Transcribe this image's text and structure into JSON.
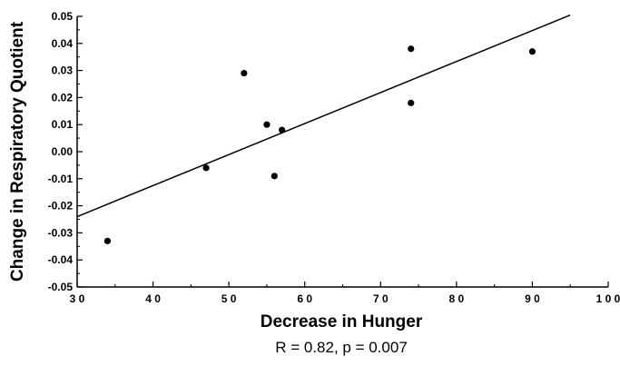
{
  "chart_data": {
    "type": "scatter",
    "title": "",
    "xlabel": "Decrease in Hunger",
    "ylabel": "Change in Respiratory Quotient",
    "xlim": [
      30,
      100
    ],
    "ylim": [
      -0.05,
      0.05
    ],
    "xticks": [
      30,
      40,
      50,
      60,
      70,
      80,
      90,
      100
    ],
    "xtick_labels": [
      "3 0",
      "4 0",
      "5 0",
      "6 0",
      "7 0",
      "8 0",
      "9 0",
      "1 0 0"
    ],
    "yticks": [
      -0.05,
      -0.04,
      -0.03,
      -0.02,
      -0.01,
      0.0,
      0.01,
      0.02,
      0.03,
      0.04,
      0.05
    ],
    "ytick_labels": [
      "-0.05",
      "-0.04",
      "-0.03",
      "-0.02",
      "-0.01",
      "0.00",
      "0.01",
      "0.02",
      "0.03",
      "0.04",
      "0.05"
    ],
    "grid": false,
    "points": [
      {
        "x": 34,
        "y": -0.033
      },
      {
        "x": 47,
        "y": -0.006
      },
      {
        "x": 52,
        "y": 0.029
      },
      {
        "x": 55,
        "y": 0.01
      },
      {
        "x": 56,
        "y": -0.009
      },
      {
        "x": 57,
        "y": 0.008
      },
      {
        "x": 74,
        "y": 0.038
      },
      {
        "x": 74,
        "y": 0.018
      },
      {
        "x": 90,
        "y": 0.037
      }
    ],
    "regression_line": {
      "x": [
        30,
        95
      ],
      "y": [
        -0.024,
        0.0505
      ]
    },
    "annotation": "R = 0.82,  p = 0.007"
  }
}
